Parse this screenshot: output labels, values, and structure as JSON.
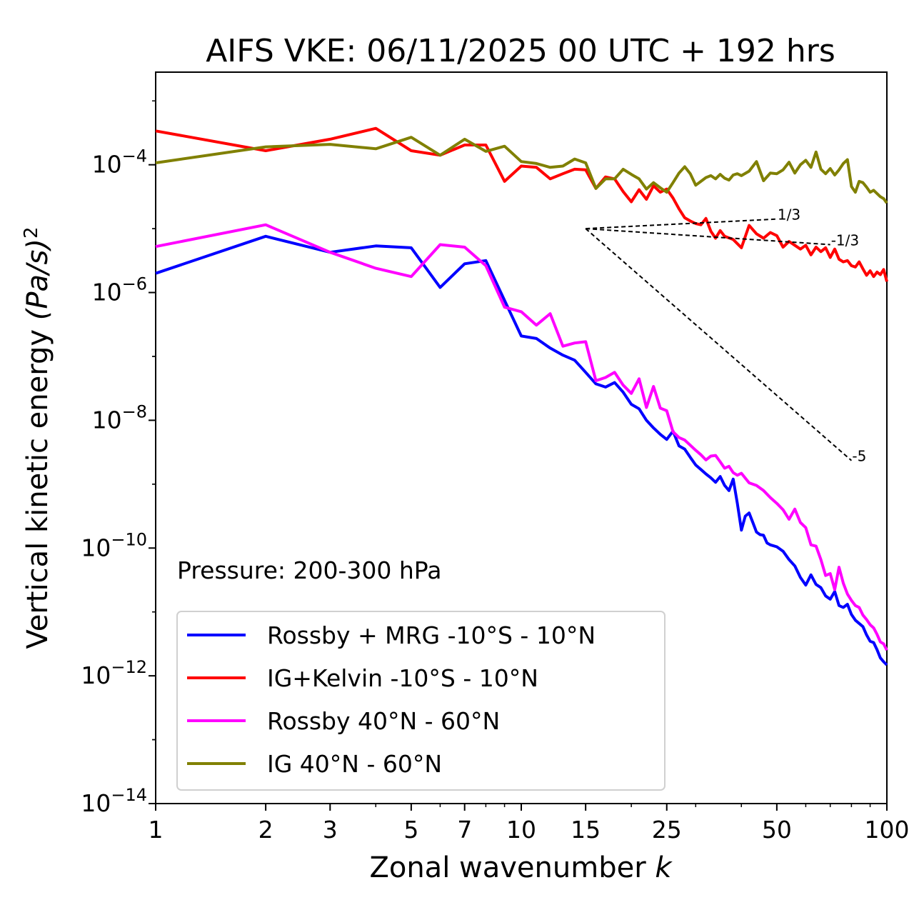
{
  "chart_data": {
    "type": "line",
    "title": "AIFS VKE: 06/11/2025 00 UTC + 192 hrs",
    "xlabel": "Zonal wavenumber",
    "xlabel_symbol": "k",
    "ylabel": "Vertical kinetic energy",
    "ylabel_unit": "(Pa/s)",
    "ylabel_unit_exp": "2",
    "xscale": "log",
    "yscale": "log",
    "xlim": [
      1,
      100
    ],
    "ylim_exponent": [
      -14,
      -2.55
    ],
    "x_ticks": [
      1,
      2,
      3,
      5,
      7,
      10,
      15,
      25,
      50,
      100
    ],
    "y_ticks": [
      {
        "base": "10",
        "exp": "−4",
        "value": -4
      },
      {
        "base": "10",
        "exp": "−6",
        "value": -6
      },
      {
        "base": "10",
        "exp": "−8",
        "value": -8
      },
      {
        "base": "10",
        "exp": "−10",
        "value": -10
      },
      {
        "base": "10",
        "exp": "−12",
        "value": -12
      },
      {
        "base": "10",
        "exp": "−14",
        "value": -14
      }
    ],
    "annotation": "Pressure: 200-300 hPa",
    "legend_position": "lower-left",
    "note": "series values are log10 of energy at listed wavenumbers",
    "series": [
      {
        "name": "Rossby + MRG -10°S - 10°N",
        "color": "#0000ff",
        "points": [
          [
            1,
            -5.7
          ],
          [
            2,
            -5.12
          ],
          [
            3,
            -5.37
          ],
          [
            4,
            -5.27
          ],
          [
            5,
            -5.3
          ],
          [
            6,
            -5.92
          ],
          [
            7,
            -5.55
          ],
          [
            8,
            -5.5
          ],
          [
            10,
            -6.68
          ],
          [
            11,
            -6.72
          ],
          [
            12,
            -6.87
          ],
          [
            13,
            -6.98
          ],
          [
            14,
            -7.06
          ],
          [
            15,
            -7.25
          ],
          [
            16,
            -7.43
          ],
          [
            17,
            -7.48
          ],
          [
            18,
            -7.41
          ],
          [
            19,
            -7.56
          ],
          [
            20,
            -7.75
          ],
          [
            21,
            -7.82
          ],
          [
            22,
            -8.0
          ],
          [
            23,
            -8.12
          ],
          [
            24,
            -8.22
          ],
          [
            25,
            -8.3
          ],
          [
            26,
            -8.17
          ],
          [
            27,
            -8.4
          ],
          [
            28,
            -8.45
          ],
          [
            29,
            -8.58
          ],
          [
            30,
            -8.7
          ],
          [
            31,
            -8.77
          ],
          [
            32,
            -8.84
          ],
          [
            33,
            -8.9
          ],
          [
            34,
            -8.97
          ],
          [
            35,
            -8.88
          ],
          [
            36,
            -9.02
          ],
          [
            37,
            -9.1
          ],
          [
            38,
            -8.92
          ],
          [
            39,
            -9.3
          ],
          [
            40,
            -9.72
          ],
          [
            41,
            -9.5
          ],
          [
            42,
            -9.45
          ],
          [
            43,
            -9.6
          ],
          [
            44,
            -9.75
          ],
          [
            45,
            -9.79
          ],
          [
            46,
            -9.8
          ],
          [
            47,
            -9.92
          ],
          [
            48,
            -9.95
          ],
          [
            50,
            -9.98
          ],
          [
            52,
            -10.05
          ],
          [
            54,
            -10.18
          ],
          [
            56,
            -10.28
          ],
          [
            58,
            -10.46
          ],
          [
            60,
            -10.58
          ],
          [
            62,
            -10.42
          ],
          [
            64,
            -10.57
          ],
          [
            66,
            -10.62
          ],
          [
            68,
            -10.75
          ],
          [
            70,
            -10.8
          ],
          [
            72,
            -10.68
          ],
          [
            74,
            -10.9
          ],
          [
            76,
            -10.93
          ],
          [
            78,
            -10.88
          ],
          [
            80,
            -11.04
          ],
          [
            82,
            -11.13
          ],
          [
            84,
            -11.18
          ],
          [
            86,
            -11.23
          ],
          [
            88,
            -11.36
          ],
          [
            90,
            -11.46
          ],
          [
            92,
            -11.48
          ],
          [
            94,
            -11.59
          ],
          [
            96,
            -11.72
          ],
          [
            98,
            -11.78
          ],
          [
            100,
            -11.83
          ]
        ]
      },
      {
        "name": "IG+Kelvin -10°S - 10°N",
        "color": "#ff0000",
        "points": [
          [
            1,
            -3.47
          ],
          [
            2,
            -3.78
          ],
          [
            3,
            -3.6
          ],
          [
            4,
            -3.43
          ],
          [
            5,
            -3.78
          ],
          [
            6,
            -3.85
          ],
          [
            7,
            -3.69
          ],
          [
            8,
            -3.69
          ],
          [
            9,
            -4.26
          ],
          [
            10,
            -4.02
          ],
          [
            11,
            -4.04
          ],
          [
            12,
            -4.22
          ],
          [
            13,
            -4.14
          ],
          [
            14,
            -4.07
          ],
          [
            15,
            -4.08
          ],
          [
            16,
            -4.37
          ],
          [
            17,
            -4.19
          ],
          [
            18,
            -4.22
          ],
          [
            19,
            -4.42
          ],
          [
            20,
            -4.58
          ],
          [
            21,
            -4.39
          ],
          [
            22,
            -4.54
          ],
          [
            23,
            -4.33
          ],
          [
            24,
            -4.43
          ],
          [
            25,
            -4.38
          ],
          [
            26,
            -4.52
          ],
          [
            27,
            -4.69
          ],
          [
            28,
            -4.83
          ],
          [
            29,
            -4.88
          ],
          [
            30,
            -4.92
          ],
          [
            31,
            -4.94
          ],
          [
            32,
            -4.84
          ],
          [
            33,
            -5.04
          ],
          [
            34,
            -5.15
          ],
          [
            35,
            -5.03
          ],
          [
            36,
            -5.12
          ],
          [
            38,
            -5.17
          ],
          [
            40,
            -5.3
          ],
          [
            42,
            -4.95
          ],
          [
            44,
            -5.08
          ],
          [
            46,
            -5.15
          ],
          [
            48,
            -5.06
          ],
          [
            50,
            -5.11
          ],
          [
            52,
            -5.29
          ],
          [
            54,
            -5.2
          ],
          [
            56,
            -5.26
          ],
          [
            58,
            -5.32
          ],
          [
            60,
            -5.26
          ],
          [
            62,
            -5.41
          ],
          [
            64,
            -5.29
          ],
          [
            66,
            -5.36
          ],
          [
            68,
            -5.3
          ],
          [
            70,
            -5.45
          ],
          [
            72,
            -5.32
          ],
          [
            74,
            -5.48
          ],
          [
            76,
            -5.52
          ],
          [
            78,
            -5.5
          ],
          [
            80,
            -5.58
          ],
          [
            82,
            -5.6
          ],
          [
            84,
            -5.52
          ],
          [
            86,
            -5.63
          ],
          [
            88,
            -5.73
          ],
          [
            90,
            -5.66
          ],
          [
            92,
            -5.75
          ],
          [
            94,
            -5.68
          ],
          [
            96,
            -5.72
          ],
          [
            98,
            -5.64
          ],
          [
            100,
            -5.83
          ]
        ]
      },
      {
        "name": "Rossby 40°N - 60°N",
        "color": "#ff00ff",
        "points": [
          [
            1,
            -5.28
          ],
          [
            2,
            -4.94
          ],
          [
            3,
            -5.37
          ],
          [
            4,
            -5.62
          ],
          [
            5,
            -5.75
          ],
          [
            6,
            -5.25
          ],
          [
            7,
            -5.29
          ],
          [
            8,
            -5.58
          ],
          [
            9,
            -6.23
          ],
          [
            10,
            -6.3
          ],
          [
            11,
            -6.51
          ],
          [
            12,
            -6.33
          ],
          [
            13,
            -6.84
          ],
          [
            14,
            -6.79
          ],
          [
            15,
            -6.77
          ],
          [
            16,
            -7.38
          ],
          [
            17,
            -7.33
          ],
          [
            18,
            -7.25
          ],
          [
            19,
            -7.45
          ],
          [
            20,
            -7.58
          ],
          [
            21,
            -7.35
          ],
          [
            22,
            -7.8
          ],
          [
            23,
            -7.47
          ],
          [
            24,
            -7.81
          ],
          [
            25,
            -7.85
          ],
          [
            26,
            -8.18
          ],
          [
            27,
            -8.27
          ],
          [
            28,
            -8.31
          ],
          [
            29,
            -8.39
          ],
          [
            30,
            -8.47
          ],
          [
            31,
            -8.54
          ],
          [
            32,
            -8.62
          ],
          [
            33,
            -8.56
          ],
          [
            34,
            -8.55
          ],
          [
            35,
            -8.65
          ],
          [
            36,
            -8.75
          ],
          [
            37,
            -8.72
          ],
          [
            38,
            -8.82
          ],
          [
            39,
            -8.86
          ],
          [
            40,
            -8.83
          ],
          [
            42,
            -8.98
          ],
          [
            44,
            -9.02
          ],
          [
            46,
            -9.1
          ],
          [
            48,
            -9.21
          ],
          [
            50,
            -9.3
          ],
          [
            52,
            -9.4
          ],
          [
            54,
            -9.55
          ],
          [
            56,
            -9.39
          ],
          [
            58,
            -9.6
          ],
          [
            60,
            -9.68
          ],
          [
            62,
            -9.95
          ],
          [
            64,
            -9.97
          ],
          [
            66,
            -10.18
          ],
          [
            68,
            -10.43
          ],
          [
            70,
            -10.4
          ],
          [
            72,
            -10.65
          ],
          [
            74,
            -10.3
          ],
          [
            76,
            -10.55
          ],
          [
            78,
            -10.72
          ],
          [
            80,
            -10.82
          ],
          [
            82,
            -10.9
          ],
          [
            84,
            -10.93
          ],
          [
            86,
            -11.05
          ],
          [
            88,
            -11.12
          ],
          [
            90,
            -11.2
          ],
          [
            92,
            -11.25
          ],
          [
            94,
            -11.35
          ],
          [
            96,
            -11.47
          ],
          [
            98,
            -11.5
          ],
          [
            100,
            -11.6
          ]
        ]
      },
      {
        "name": "IG 40°N - 60°N",
        "color": "#808000",
        "points": [
          [
            1,
            -3.97
          ],
          [
            2,
            -3.72
          ],
          [
            3,
            -3.68
          ],
          [
            4,
            -3.75
          ],
          [
            5,
            -3.57
          ],
          [
            6,
            -3.85
          ],
          [
            7,
            -3.6
          ],
          [
            8,
            -3.79
          ],
          [
            9,
            -3.71
          ],
          [
            10,
            -3.95
          ],
          [
            11,
            -3.98
          ],
          [
            12,
            -4.04
          ],
          [
            13,
            -4.02
          ],
          [
            14,
            -3.91
          ],
          [
            15,
            -3.97
          ],
          [
            16,
            -4.37
          ],
          [
            17,
            -4.22
          ],
          [
            18,
            -4.22
          ],
          [
            19,
            -4.07
          ],
          [
            20,
            -4.15
          ],
          [
            21,
            -4.22
          ],
          [
            22,
            -4.38
          ],
          [
            23,
            -4.28
          ],
          [
            24,
            -4.36
          ],
          [
            25,
            -4.43
          ],
          [
            26,
            -4.28
          ],
          [
            27,
            -4.13
          ],
          [
            28,
            -4.03
          ],
          [
            29,
            -4.14
          ],
          [
            30,
            -4.32
          ],
          [
            31,
            -4.26
          ],
          [
            32,
            -4.2
          ],
          [
            33,
            -4.17
          ],
          [
            34,
            -4.22
          ],
          [
            35,
            -4.15
          ],
          [
            36,
            -4.21
          ],
          [
            37,
            -4.24
          ],
          [
            38,
            -4.16
          ],
          [
            39,
            -4.14
          ],
          [
            40,
            -4.17
          ],
          [
            42,
            -4.1
          ],
          [
            44,
            -3.95
          ],
          [
            46,
            -4.25
          ],
          [
            48,
            -4.13
          ],
          [
            50,
            -4.14
          ],
          [
            52,
            -4.08
          ],
          [
            54,
            -3.96
          ],
          [
            56,
            -4.13
          ],
          [
            58,
            -4.0
          ],
          [
            60,
            -3.93
          ],
          [
            62,
            -4.04
          ],
          [
            64,
            -3.8
          ],
          [
            66,
            -4.07
          ],
          [
            68,
            -4.14
          ],
          [
            70,
            -4.06
          ],
          [
            72,
            -4.16
          ],
          [
            74,
            -4.08
          ],
          [
            76,
            -3.98
          ],
          [
            78,
            -3.92
          ],
          [
            80,
            -4.34
          ],
          [
            82,
            -4.43
          ],
          [
            84,
            -4.26
          ],
          [
            86,
            -4.28
          ],
          [
            88,
            -4.35
          ],
          [
            90,
            -4.43
          ],
          [
            92,
            -4.4
          ],
          [
            94,
            -4.45
          ],
          [
            96,
            -4.5
          ],
          [
            98,
            -4.53
          ],
          [
            100,
            -4.6
          ]
        ]
      }
    ],
    "reference_lines": [
      {
        "label": "1/3",
        "from": [
          15,
          -5.0
        ],
        "to": [
          50,
          -4.85
        ]
      },
      {
        "label": "-1/3",
        "from": [
          15,
          -5.0
        ],
        "to": [
          70,
          -5.25
        ]
      },
      {
        "label": "-5",
        "from": [
          15,
          -5.0
        ],
        "to": [
          80,
          -8.63
        ]
      }
    ]
  }
}
